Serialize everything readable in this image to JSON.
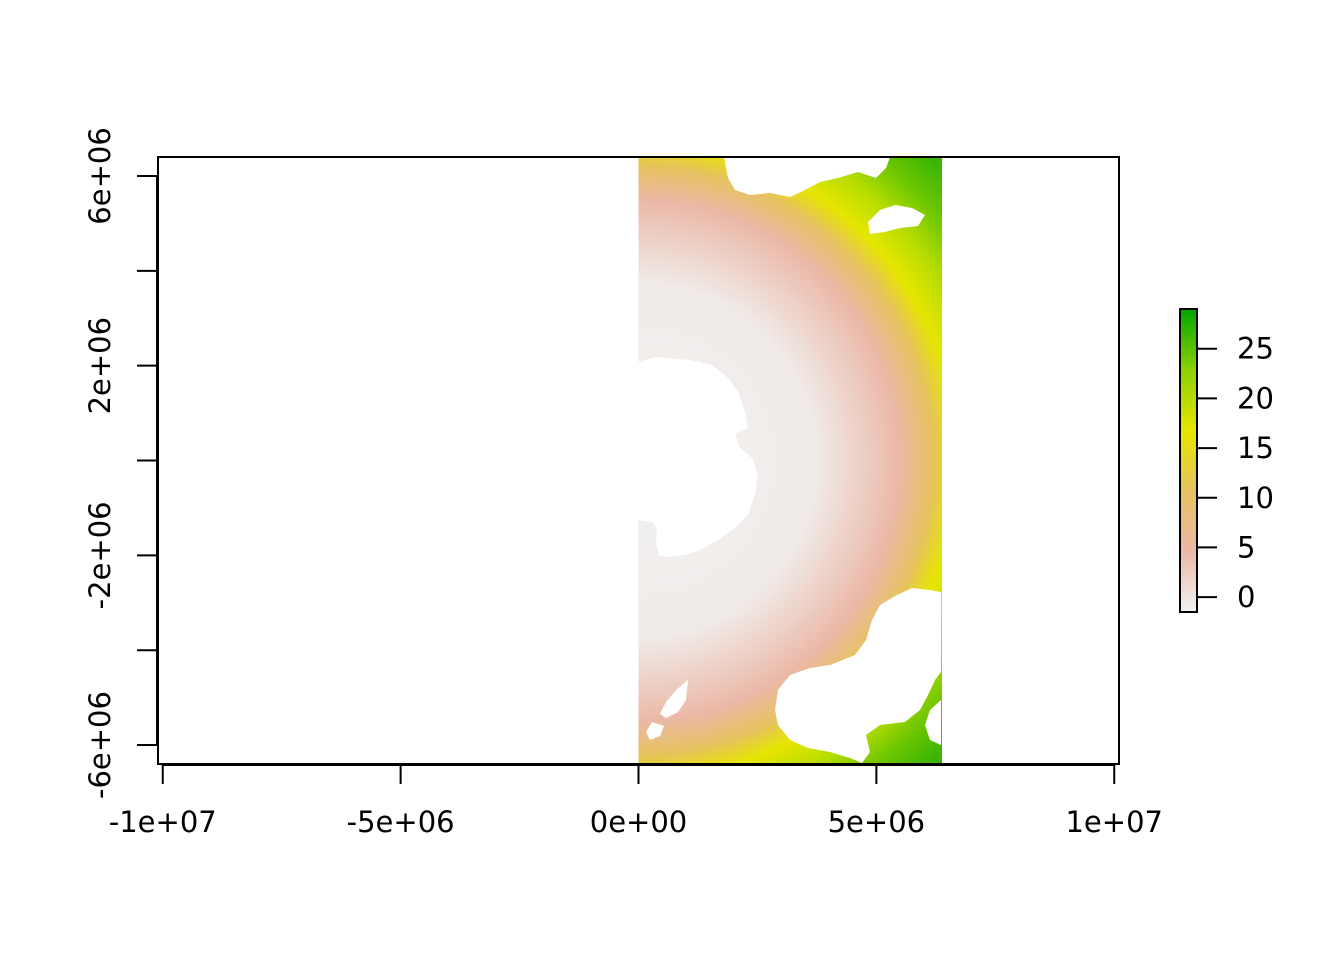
{
  "chart_data": {
    "type": "heatmap",
    "title": "",
    "xlabel": "",
    "ylabel": "",
    "xlim": [
      -10100000,
      10100000
    ],
    "ylim": [
      -6400000,
      6400000
    ],
    "x_ticks": [
      {
        "value": -10000000,
        "label": "-1e+07"
      },
      {
        "value": -5000000,
        "label": "-5e+06"
      },
      {
        "value": 0,
        "label": "0e+00"
      },
      {
        "value": 5000000,
        "label": "5e+06"
      },
      {
        "value": 10000000,
        "label": "1e+07"
      }
    ],
    "y_ticks": [
      {
        "value": -6000000,
        "label": "-6e+06"
      },
      {
        "value": -4000000,
        "label": ""
      },
      {
        "value": -2000000,
        "label": "-2e+06"
      },
      {
        "value": 0,
        "label": ""
      },
      {
        "value": 2000000,
        "label": "2e+06"
      },
      {
        "value": 4000000,
        "label": ""
      },
      {
        "value": 6000000,
        "label": "6e+06"
      }
    ],
    "raster": {
      "x_range": [
        0,
        6380000
      ],
      "y_range": [
        -6400000,
        6400000
      ],
      "center": [
        0,
        0
      ],
      "value_range": [
        -1.5,
        29
      ],
      "description_of_pattern": "radial gradient from center"
    },
    "legend": {
      "placement": "right",
      "range": [
        -1.5,
        29
      ],
      "ticks": [
        {
          "value": 0,
          "label": "0"
        },
        {
          "value": 5,
          "label": "5"
        },
        {
          "value": 10,
          "label": "10"
        },
        {
          "value": 15,
          "label": "15"
        },
        {
          "value": 20,
          "label": "20"
        },
        {
          "value": 25,
          "label": "25"
        }
      ],
      "colors": [
        "#f2f2f2",
        "#ebb8a7",
        "#e6c25f",
        "#e6e600",
        "#8bd000",
        "#00a600"
      ]
    },
    "grid": false
  }
}
